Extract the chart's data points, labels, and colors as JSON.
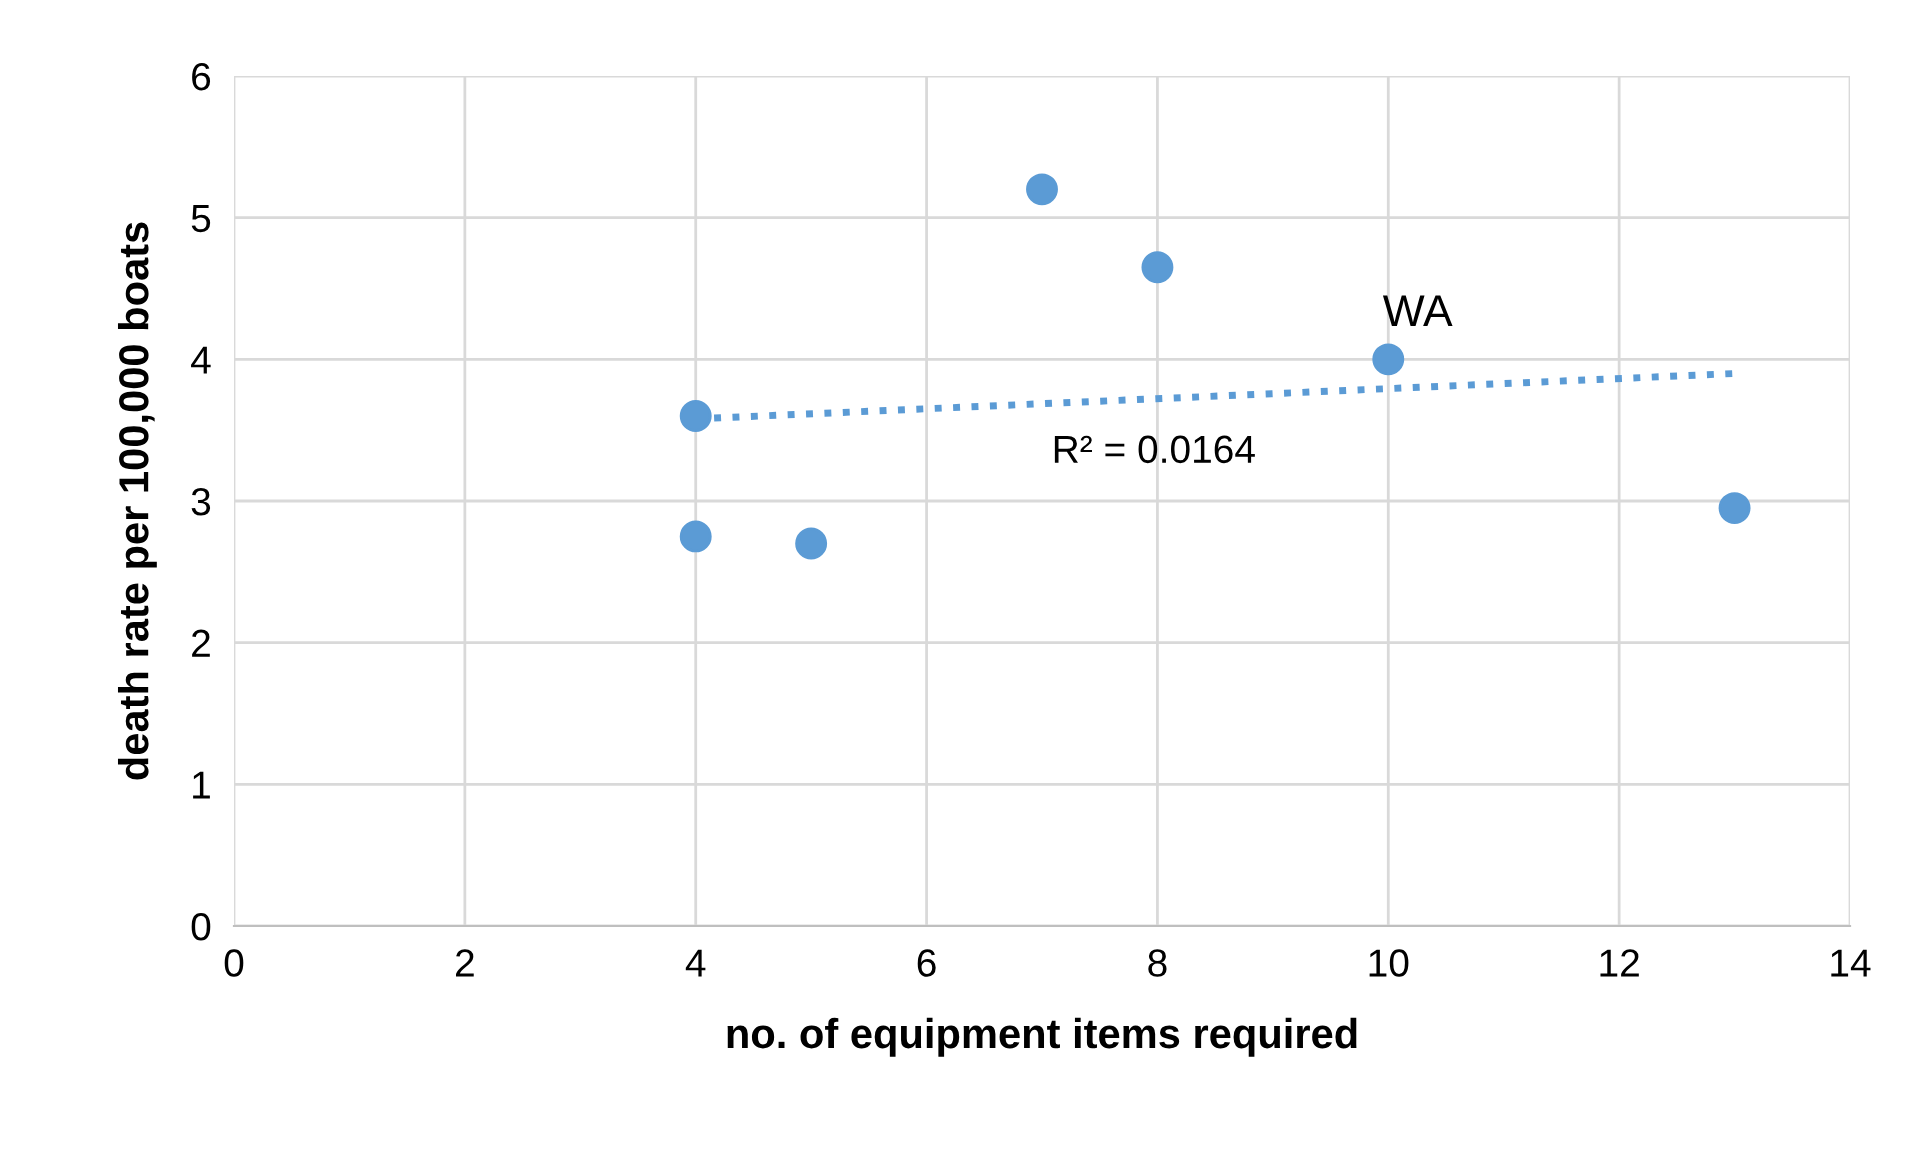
{
  "chart_data": {
    "type": "scatter",
    "xlabel": "no. of equipment items required",
    "ylabel": "death rate per 100,000 boats",
    "series": [
      {
        "color": "#5b9bd5",
        "x": [
          4,
          4,
          5,
          7,
          8,
          10,
          13
        ],
        "values": [
          3.6,
          2.75,
          2.7,
          5.2,
          4.65,
          4.0,
          2.95
        ],
        "marker": "circle"
      },
      {
        "type": "line",
        "color": "#5b9bd5",
        "x": [
          4,
          13
        ],
        "values": [
          3.58,
          3.9
        ],
        "line_style": "dotted",
        "marker": "none"
      }
    ],
    "annotations": [
      {
        "text": "WA",
        "x": 10,
        "y": 4.0
      },
      "R² = 0.0164"
    ],
    "xlim": [
      0,
      14
    ],
    "xticks": [
      0,
      2,
      4,
      6,
      8,
      10,
      12,
      14
    ],
    "ylim": [
      0,
      6
    ],
    "yticks": [
      0,
      1,
      2,
      3,
      4,
      5,
      6
    ],
    "grid": true,
    "legend": false
  }
}
